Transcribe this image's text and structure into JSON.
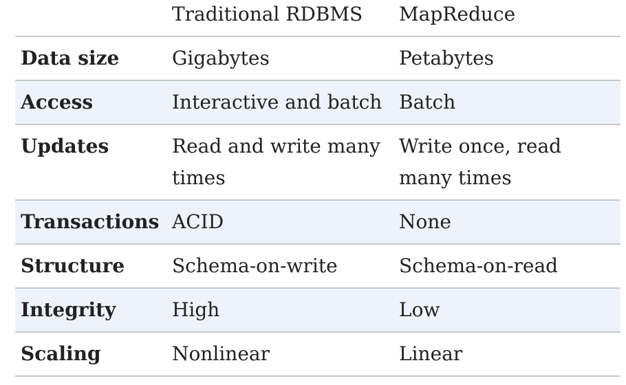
{
  "table": {
    "headers": [
      "",
      "Traditional RDBMS",
      "MapReduce"
    ],
    "rows": [
      {
        "label": "Data size",
        "rdbms": "Gigabytes",
        "mapreduce": "Petabytes"
      },
      {
        "label": "Access",
        "rdbms": "Interactive and batch",
        "mapreduce": "Batch"
      },
      {
        "label": "Updates",
        "rdbms_line1": "Read and write many",
        "rdbms_line2": "times",
        "mapreduce_line1": "Write once, read",
        "mapreduce_line2": "many times"
      },
      {
        "label": "Transactions",
        "rdbms": "ACID",
        "mapreduce": "None"
      },
      {
        "label": "Structure",
        "rdbms": "Schema-on-write",
        "mapreduce": "Schema-on-read"
      },
      {
        "label": "Integrity",
        "rdbms": "High",
        "mapreduce": "Low"
      },
      {
        "label": "Scaling",
        "rdbms": "Nonlinear",
        "mapreduce": "Linear"
      }
    ]
  },
  "colors": {
    "alt_row_background": "#eef3fb",
    "border": "#c8c8c8",
    "text": "#222222"
  }
}
